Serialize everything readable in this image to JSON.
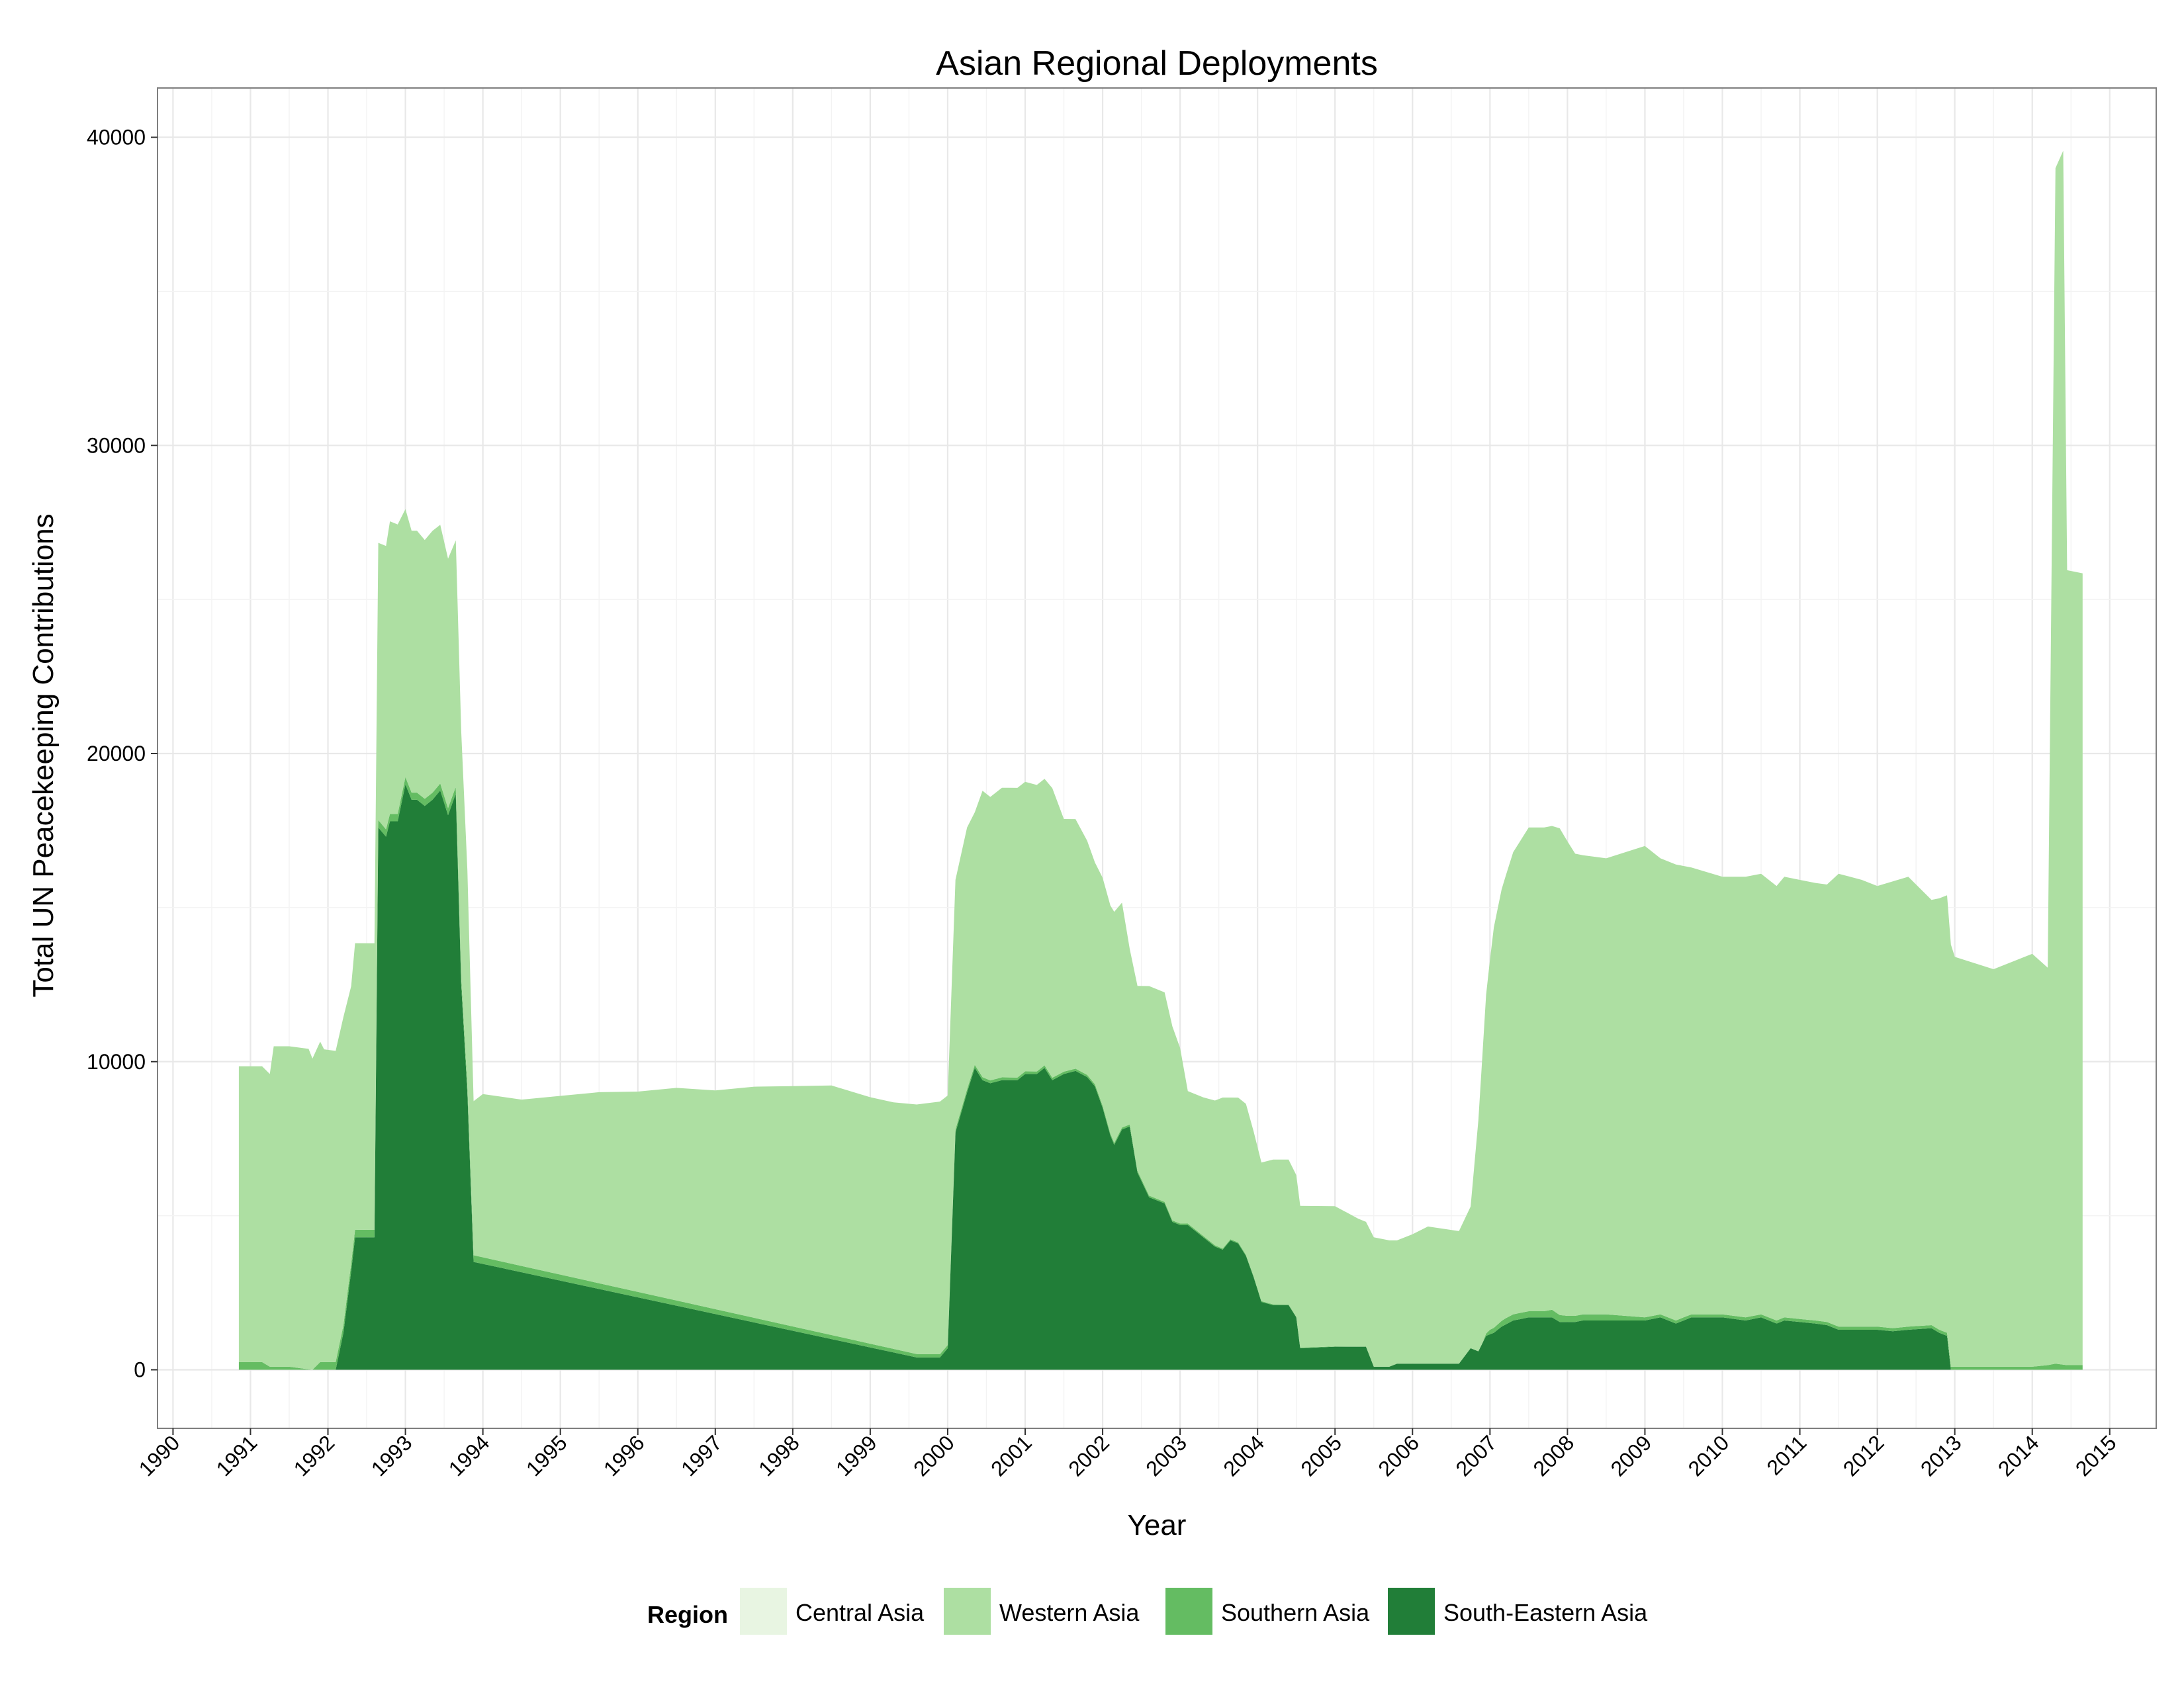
{
  "chart_data": {
    "type": "area",
    "stacked": true,
    "title": "Asian Regional Deployments",
    "xlabel": "Year",
    "ylabel": "Total UN Peacekeeping Contributions",
    "xlim": [
      1989.8,
      2015.6
    ],
    "ylim": [
      -1900,
      41600
    ],
    "x_ticks": [
      1990,
      1991,
      1992,
      1993,
      1994,
      1995,
      1996,
      1997,
      1998,
      1999,
      2000,
      2001,
      2002,
      2003,
      2004,
      2005,
      2006,
      2007,
      2008,
      2009,
      2010,
      2011,
      2012,
      2013,
      2014,
      2015
    ],
    "y_ticks": [
      0,
      10000,
      20000,
      30000,
      40000
    ],
    "grid": true,
    "legend": {
      "title": "Region",
      "position": "bottom",
      "entries": [
        "Central Asia",
        "Western Asia",
        "Southern Asia",
        "South-Eastern Asia"
      ]
    },
    "colors": {
      "Central Asia": "#e8f5e2",
      "Western Asia": "#addfa2",
      "Southern Asia": "#64bc62",
      "South-Eastern Asia": "#217e38",
      "panel_border": "#7f7f7f",
      "grid": "#e8e8e8"
    },
    "series": [
      {
        "name": "South-Eastern Asia",
        "points": [
          [
            1991.9,
            0
          ],
          [
            1992.1,
            0
          ],
          [
            1992.2,
            1200
          ],
          [
            1992.3,
            3200
          ],
          [
            1992.35,
            4300
          ],
          [
            1992.6,
            4300
          ],
          [
            1992.65,
            17600
          ],
          [
            1992.75,
            17300
          ],
          [
            1992.8,
            17800
          ],
          [
            1992.9,
            17800
          ],
          [
            1993.0,
            19000
          ],
          [
            1993.08,
            18500
          ],
          [
            1993.15,
            18500
          ],
          [
            1993.25,
            18300
          ],
          [
            1993.35,
            18500
          ],
          [
            1993.45,
            18800
          ],
          [
            1993.55,
            18000
          ],
          [
            1993.65,
            18700
          ],
          [
            1993.72,
            12500
          ],
          [
            1993.8,
            9000
          ],
          [
            1993.88,
            3500
          ],
          [
            1999.6,
            400
          ],
          [
            1999.9,
            400
          ],
          [
            2000.0,
            700
          ],
          [
            2000.1,
            7700
          ],
          [
            2000.25,
            9000
          ],
          [
            2000.35,
            9800
          ],
          [
            2000.45,
            9400
          ],
          [
            2000.55,
            9300
          ],
          [
            2000.7,
            9400
          ],
          [
            2000.9,
            9400
          ],
          [
            2001.0,
            9600
          ],
          [
            2001.15,
            9600
          ],
          [
            2001.25,
            9800
          ],
          [
            2001.35,
            9400
          ],
          [
            2001.5,
            9600
          ],
          [
            2001.65,
            9700
          ],
          [
            2001.8,
            9500
          ],
          [
            2001.9,
            9200
          ],
          [
            2002.0,
            8500
          ],
          [
            2002.1,
            7600
          ],
          [
            2002.15,
            7300
          ],
          [
            2002.25,
            7800
          ],
          [
            2002.35,
            7900
          ],
          [
            2002.45,
            6400
          ],
          [
            2002.6,
            5600
          ],
          [
            2002.8,
            5400
          ],
          [
            2002.9,
            4800
          ],
          [
            2003.0,
            4700
          ],
          [
            2003.1,
            4700
          ],
          [
            2003.3,
            4300
          ],
          [
            2003.45,
            4000
          ],
          [
            2003.55,
            3900
          ],
          [
            2003.65,
            4200
          ],
          [
            2003.75,
            4100
          ],
          [
            2003.85,
            3700
          ],
          [
            2003.95,
            3000
          ],
          [
            2004.05,
            2200
          ],
          [
            2004.2,
            2100
          ],
          [
            2004.4,
            2100
          ],
          [
            2004.5,
            1700
          ],
          [
            2004.55,
            700
          ],
          [
            2005.0,
            750
          ],
          [
            2005.3,
            750
          ],
          [
            2005.4,
            750
          ],
          [
            2005.5,
            100
          ],
          [
            2005.7,
            100
          ],
          [
            2005.8,
            200
          ],
          [
            2006.6,
            200
          ],
          [
            2006.75,
            700
          ],
          [
            2006.85,
            600
          ],
          [
            2006.95,
            1100
          ],
          [
            2007.05,
            1200
          ],
          [
            2007.15,
            1400
          ],
          [
            2007.3,
            1600
          ],
          [
            2007.5,
            1700
          ],
          [
            2007.8,
            1700
          ],
          [
            2007.9,
            1550
          ],
          [
            2008.1,
            1550
          ],
          [
            2008.2,
            1600
          ],
          [
            2008.5,
            1600
          ],
          [
            2009.0,
            1600
          ],
          [
            2009.2,
            1700
          ],
          [
            2009.4,
            1500
          ],
          [
            2009.6,
            1700
          ],
          [
            2010.0,
            1700
          ],
          [
            2010.3,
            1600
          ],
          [
            2010.5,
            1700
          ],
          [
            2010.7,
            1500
          ],
          [
            2010.8,
            1600
          ],
          [
            2011.2,
            1500
          ],
          [
            2011.35,
            1450
          ],
          [
            2011.5,
            1300
          ],
          [
            2011.8,
            1300
          ],
          [
            2012.0,
            1300
          ],
          [
            2012.2,
            1250
          ],
          [
            2012.4,
            1300
          ],
          [
            2012.7,
            1350
          ],
          [
            2012.8,
            1200
          ],
          [
            2012.9,
            1100
          ],
          [
            2012.95,
            0
          ],
          [
            2014.65,
            0
          ]
        ]
      },
      {
        "name": "Southern Asia",
        "points": [
          [
            1990.85,
            250
          ],
          [
            1991.15,
            250
          ],
          [
            1991.25,
            100
          ],
          [
            1991.5,
            100
          ],
          [
            1991.8,
            0
          ],
          [
            1991.9,
            250
          ],
          [
            1992.1,
            250
          ],
          [
            2005.5,
            0
          ],
          [
            2005.8,
            0
          ],
          [
            2006.9,
            0
          ],
          [
            2007.0,
            150
          ],
          [
            2007.2,
            200
          ],
          [
            2007.4,
            200
          ],
          [
            2007.7,
            200
          ],
          [
            2007.8,
            250
          ],
          [
            2008.0,
            200
          ],
          [
            2008.5,
            200
          ],
          [
            2009.0,
            100
          ],
          [
            2009.5,
            100
          ],
          [
            2010.0,
            100
          ],
          [
            2011.0,
            100
          ],
          [
            2011.5,
            100
          ],
          [
            2012.0,
            100
          ],
          [
            2012.8,
            100
          ],
          [
            2012.95,
            100
          ],
          [
            2013.0,
            100
          ],
          [
            2013.5,
            100
          ],
          [
            2014.0,
            100
          ],
          [
            2014.2,
            150
          ],
          [
            2014.3,
            200
          ],
          [
            2014.45,
            150
          ],
          [
            2014.65,
            150
          ]
        ]
      },
      {
        "name": "Western Asia",
        "points": [
          [
            1990.85,
            9600
          ],
          [
            1991.15,
            9600
          ],
          [
            1991.25,
            9500
          ],
          [
            1991.3,
            10400
          ],
          [
            1991.5,
            10400
          ],
          [
            1991.75,
            10400
          ],
          [
            1991.8,
            10100
          ],
          [
            1991.9,
            10400
          ],
          [
            1991.95,
            10150
          ],
          [
            1992.1,
            10100
          ],
          [
            1992.2,
            10000
          ],
          [
            1992.3,
            9000
          ],
          [
            1992.35,
            9300
          ],
          [
            1992.6,
            9300
          ],
          [
            1992.65,
            9000
          ],
          [
            1992.75,
            9200
          ],
          [
            1992.8,
            9500
          ],
          [
            1992.9,
            9400
          ],
          [
            1993.0,
            8700
          ],
          [
            1993.08,
            8500
          ],
          [
            1993.15,
            8500
          ],
          [
            1993.25,
            8400
          ],
          [
            1993.35,
            8500
          ],
          [
            1993.45,
            8400
          ],
          [
            1993.55,
            8100
          ],
          [
            1993.65,
            8000
          ],
          [
            1993.72,
            8000
          ],
          [
            1993.8,
            7000
          ],
          [
            1993.88,
            5000
          ],
          [
            1994.0,
            5300
          ],
          [
            1994.5,
            5400
          ],
          [
            1995.0,
            5800
          ],
          [
            1995.5,
            6200
          ],
          [
            1996.0,
            6500
          ],
          [
            1996.5,
            6900
          ],
          [
            1997.0,
            7100
          ],
          [
            1997.5,
            7500
          ],
          [
            1998.0,
            7800
          ],
          [
            1998.5,
            8100
          ],
          [
            1999.0,
            8000
          ],
          [
            1999.3,
            8000
          ],
          [
            1999.6,
            8100
          ],
          [
            1999.9,
            8200
          ],
          [
            2000.0,
            8100
          ],
          [
            2000.1,
            8100
          ],
          [
            2000.25,
            8500
          ],
          [
            2000.35,
            8200
          ],
          [
            2000.45,
            9300
          ],
          [
            2000.55,
            9200
          ],
          [
            2000.7,
            9400
          ],
          [
            2000.9,
            9400
          ],
          [
            2001.0,
            9400
          ],
          [
            2001.15,
            9300
          ],
          [
            2001.25,
            9300
          ],
          [
            2001.35,
            9400
          ],
          [
            2001.5,
            8200
          ],
          [
            2001.65,
            8100
          ],
          [
            2001.8,
            7600
          ],
          [
            2001.9,
            7200
          ],
          [
            2002.0,
            7400
          ],
          [
            2002.1,
            7400
          ],
          [
            2002.15,
            7500
          ],
          [
            2002.25,
            7300
          ],
          [
            2002.35,
            5700
          ],
          [
            2002.45,
            6000
          ],
          [
            2002.6,
            6800
          ],
          [
            2002.8,
            6800
          ],
          [
            2002.9,
            6300
          ],
          [
            2003.0,
            5700
          ],
          [
            2003.1,
            4300
          ],
          [
            2003.3,
            4500
          ],
          [
            2003.45,
            4700
          ],
          [
            2003.55,
            4900
          ],
          [
            2003.65,
            4600
          ],
          [
            2003.75,
            4700
          ],
          [
            2003.85,
            4900
          ],
          [
            2003.95,
            4700
          ],
          [
            2004.05,
            4500
          ],
          [
            2004.2,
            4700
          ],
          [
            2004.4,
            4700
          ],
          [
            2004.5,
            4600
          ],
          [
            2004.55,
            4600
          ],
          [
            2005.0,
            4550
          ],
          [
            2005.3,
            4150
          ],
          [
            2005.4,
            4050
          ],
          [
            2005.5,
            4200
          ],
          [
            2005.7,
            4100
          ],
          [
            2005.8,
            4000
          ],
          [
            2006.0,
            4200
          ],
          [
            2006.2,
            4450
          ],
          [
            2006.6,
            4300
          ],
          [
            2006.75,
            4600
          ],
          [
            2006.85,
            7500
          ],
          [
            2006.95,
            11000
          ],
          [
            2007.05,
            13000
          ],
          [
            2007.15,
            14000
          ],
          [
            2007.3,
            15000
          ],
          [
            2007.5,
            15700
          ],
          [
            2007.8,
            15700
          ],
          [
            2007.9,
            15800
          ],
          [
            2008.1,
            15000
          ],
          [
            2008.2,
            14900
          ],
          [
            2008.5,
            14800
          ],
          [
            2009.0,
            15300
          ],
          [
            2009.2,
            14800
          ],
          [
            2009.4,
            14800
          ],
          [
            2009.6,
            14500
          ],
          [
            2010.0,
            14200
          ],
          [
            2010.3,
            14300
          ],
          [
            2010.5,
            14300
          ],
          [
            2010.7,
            14100
          ],
          [
            2010.8,
            14300
          ],
          [
            2011.2,
            14200
          ],
          [
            2011.35,
            14200
          ],
          [
            2011.5,
            14700
          ],
          [
            2011.8,
            14500
          ],
          [
            2012.0,
            14300
          ],
          [
            2012.2,
            14500
          ],
          [
            2012.4,
            14600
          ],
          [
            2012.7,
            13800
          ],
          [
            2012.8,
            14000
          ],
          [
            2012.9,
            14200
          ],
          [
            2012.95,
            13700
          ],
          [
            2013.0,
            13300
          ],
          [
            2013.5,
            12900
          ],
          [
            2014.0,
            13400
          ],
          [
            2014.2,
            12900
          ],
          [
            2014.3,
            38800
          ],
          [
            2014.4,
            39400
          ],
          [
            2014.45,
            25800
          ],
          [
            2014.65,
            25700
          ]
        ]
      },
      {
        "name": "Central Asia",
        "points": [
          [
            1990.85,
            0
          ],
          [
            2014.65,
            0
          ]
        ]
      }
    ]
  }
}
